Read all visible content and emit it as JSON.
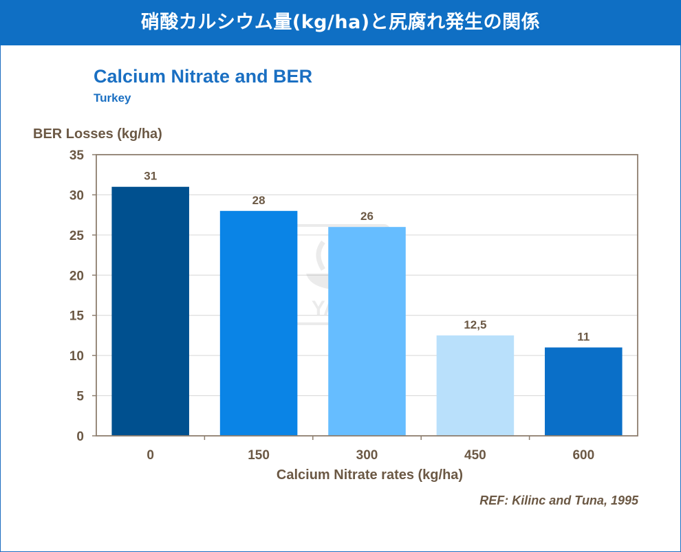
{
  "header": {
    "title": "硝酸カルシウム量(kg/ha)と尻腐れ発生の関係"
  },
  "chart_data": {
    "type": "bar",
    "title": "Calcium Nitrate and BER",
    "subtitle": "Turkey",
    "ylabel": "BER Losses (kg/ha)",
    "xlabel": "Calcium Nitrate rates (kg/ha)",
    "categories": [
      "0",
      "150",
      "300",
      "450",
      "600"
    ],
    "values": [
      31,
      28,
      26,
      12.5,
      11
    ],
    "data_labels": [
      "31",
      "28",
      "26",
      "12,5",
      "11"
    ],
    "ylim": [
      0,
      35
    ],
    "yticks": [
      0,
      5,
      10,
      15,
      20,
      25,
      30,
      35
    ],
    "grid": true,
    "legend": "none",
    "bar_colors": [
      "#00508f",
      "#0a84e6",
      "#66bdff",
      "#b9e0fb",
      "#0a6fc8"
    ],
    "watermark": "YARA",
    "reference": "REF: Kilinc and Tuna, 1995"
  }
}
